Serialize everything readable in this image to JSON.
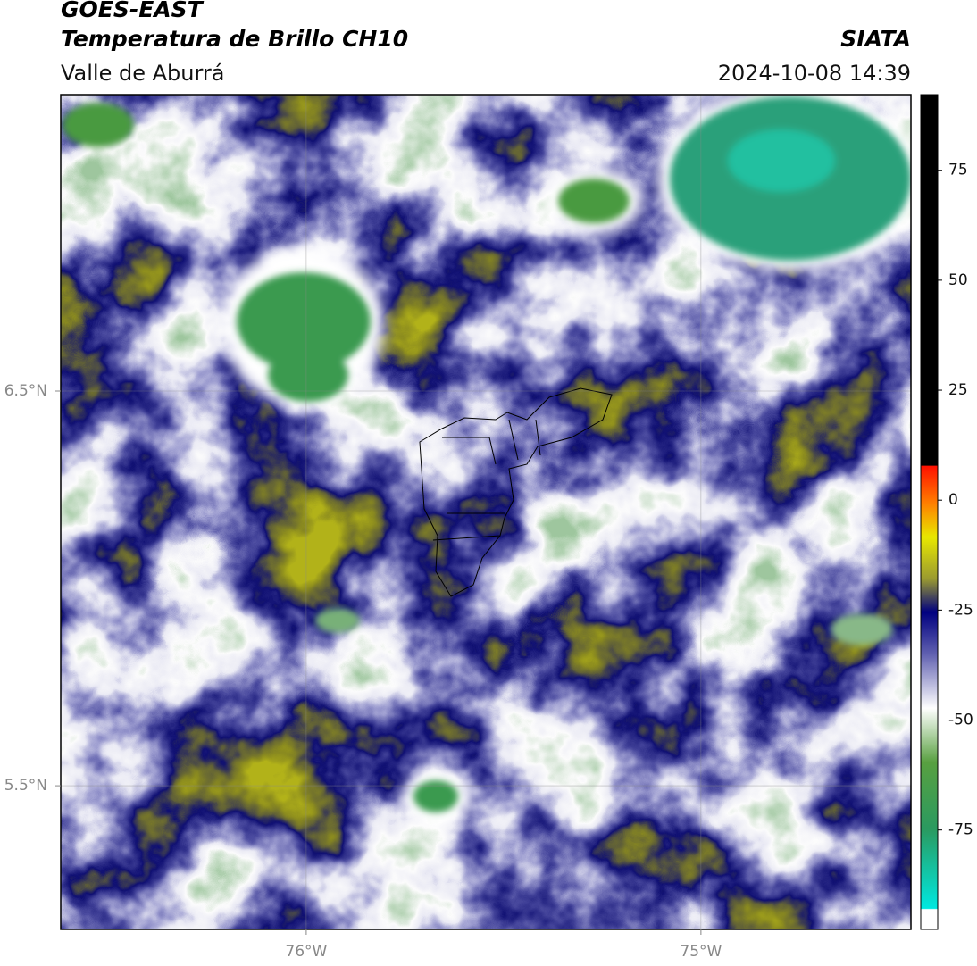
{
  "header": {
    "title": "GOES-EAST",
    "subtitle": "Temperatura de Brillo CH10",
    "region": "Valle de Aburrá",
    "source": "SIATA",
    "datetime": "2024-10-08 14:39"
  },
  "map": {
    "xlim": [
      -76.622,
      -74.468
    ],
    "ylim": [
      5.136,
      7.251
    ],
    "xticks": [
      {
        "value": -76,
        "label": "76°W"
      },
      {
        "value": -75,
        "label": "75°W"
      }
    ],
    "yticks": [
      {
        "value": 6.5,
        "label": "6.5°N"
      },
      {
        "value": 5.5,
        "label": "5.5°N"
      }
    ],
    "grid": true
  },
  "colorbar": {
    "lim": [
      -97.6,
      92.2
    ],
    "ticks": [
      75,
      50,
      25,
      0,
      -25,
      -50,
      -75
    ]
  }
}
